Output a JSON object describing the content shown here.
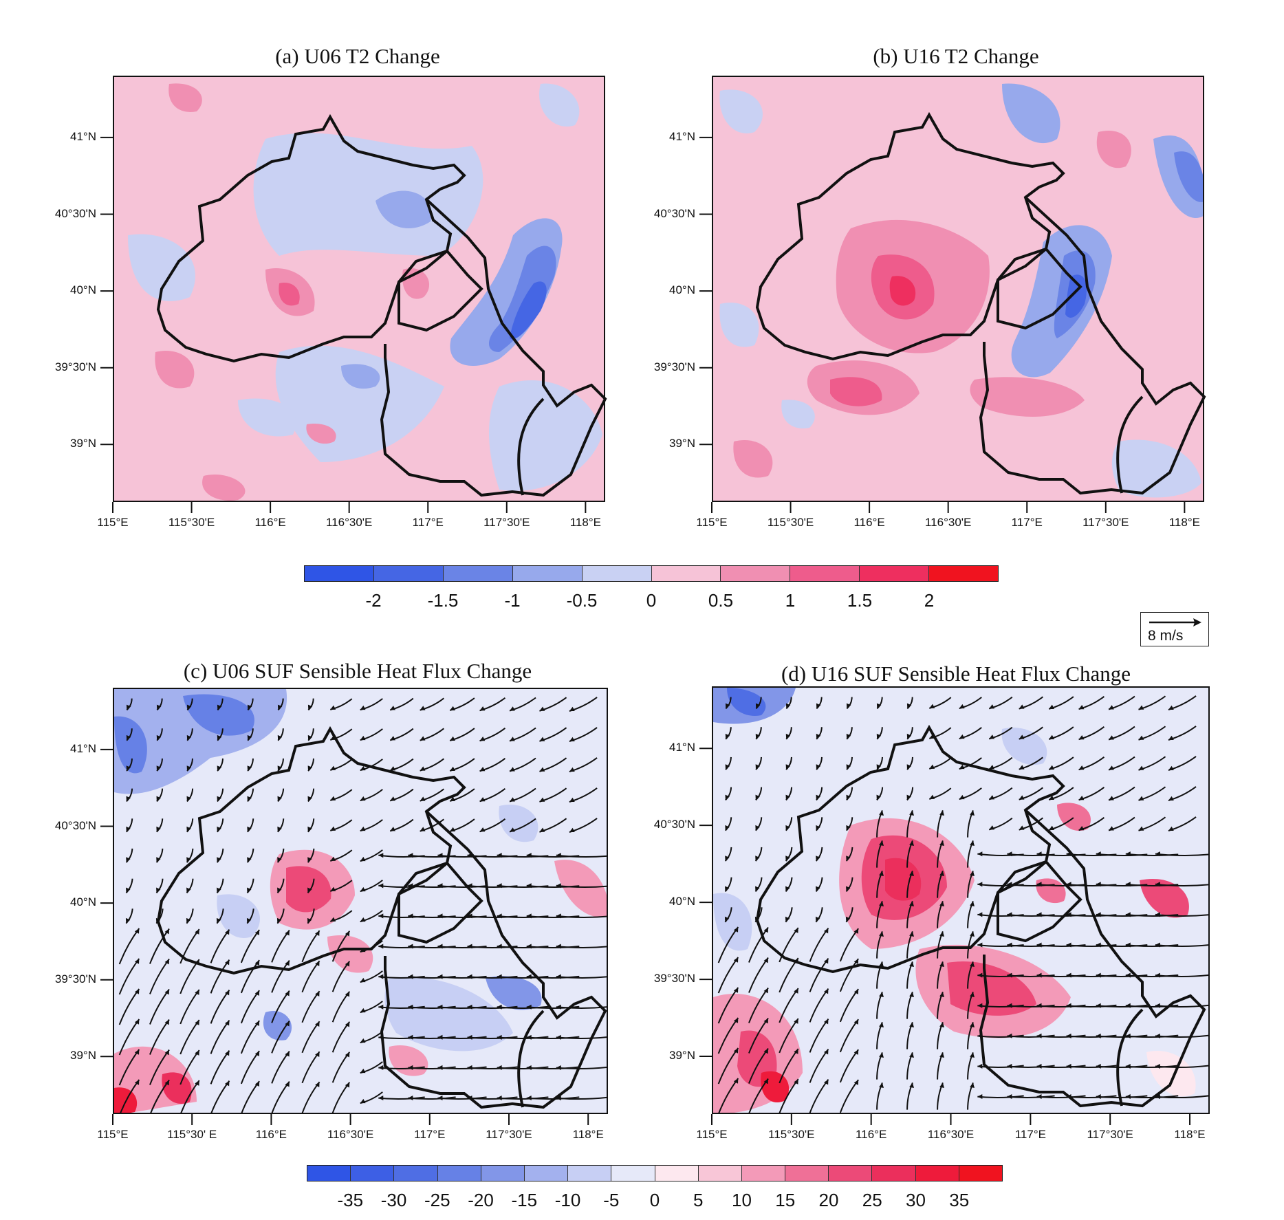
{
  "panels": [
    {
      "id": "a",
      "title": "(a) U06 T2 Change",
      "kind": "t2",
      "vectors": false
    },
    {
      "id": "b",
      "title": "(b) U16 T2 Change",
      "kind": "t2",
      "vectors": false
    },
    {
      "id": "c",
      "title": "(c) U06 SUF  Sensible Heat Flux Change",
      "kind": "shf",
      "vectors": true
    },
    {
      "id": "d",
      "title": "(d) U16 SUF Sensible Heat Flux Change",
      "kind": "shf",
      "vectors": true
    }
  ],
  "lat_labels": [
    "41°N",
    "40°30'N",
    "40°N",
    "39°30'N",
    "39°N"
  ],
  "lon_labels_top": [
    "115°E",
    "115°30'E",
    "116°E",
    "116°30'E",
    "117°E",
    "117°30'E",
    "118°E"
  ],
  "lon_labels_bottom": [
    "115°E",
    "115°30' E",
    "116°E",
    "116°30'E",
    "117°E",
    "117°30'E",
    "118°E"
  ],
  "colorbar_t2": {
    "labels": [
      "-2",
      "-1.5",
      "-1",
      "-0.5",
      "0",
      "0.5",
      "1",
      "1.5",
      "2"
    ],
    "colors": [
      "#2f55e6",
      "#4566e4",
      "#6a84e6",
      "#97a9ec",
      "#c9d1f3",
      "#f6c3d7",
      "#f08fb2",
      "#ee5c8c",
      "#ee2f5f",
      "#f0131f"
    ]
  },
  "colorbar_shf": {
    "labels": [
      "-35",
      "-30",
      "-25",
      "-20",
      "-15",
      "-10",
      "-5",
      "0",
      "5",
      "10",
      "15",
      "20",
      "25",
      "30",
      "35"
    ],
    "colors": [
      "#2f55e6",
      "#3d5fe5",
      "#4f6ee4",
      "#6681e6",
      "#8296e8",
      "#a3b1ee",
      "#c7cff4",
      "#e6e9f9",
      "#fde8ef",
      "#f8c6d7",
      "#f39ab8",
      "#ef7097",
      "#ec4a78",
      "#eb2f5c",
      "#ee1b3b",
      "#f0131f"
    ]
  },
  "reference_vector": {
    "label": "8 m/s"
  }
}
